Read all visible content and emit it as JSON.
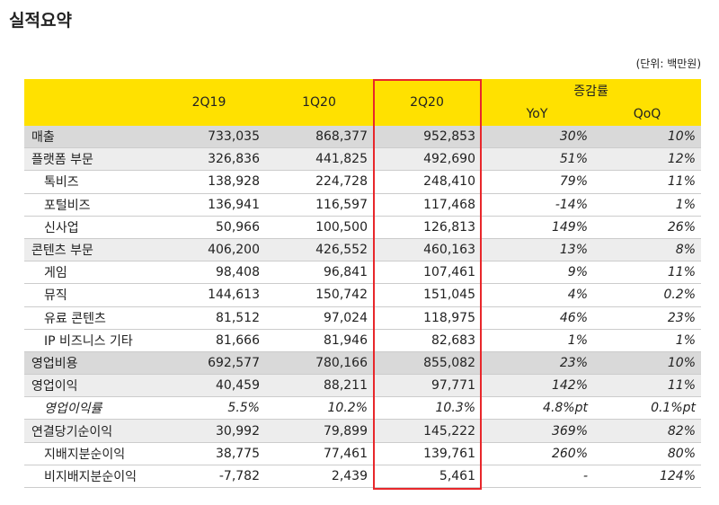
{
  "title": "실적요약",
  "unit": "(단위: 백만원)",
  "table": {
    "columns": [
      "2Q19",
      "1Q20",
      "2Q20"
    ],
    "change_group": "증감률",
    "change_columns": [
      "YoY",
      "QoQ"
    ],
    "rows": [
      [
        "매출",
        "733,035",
        "868,377",
        "952,853",
        "30%",
        "10%"
      ],
      [
        "플랫폼 부문",
        "326,836",
        "441,825",
        "492,690",
        "51%",
        "12%"
      ],
      [
        "톡비즈",
        "138,928",
        "224,728",
        "248,410",
        "79%",
        "11%"
      ],
      [
        "포털비즈",
        "136,941",
        "116,597",
        "117,468",
        "-14%",
        "1%"
      ],
      [
        "신사업",
        "50,966",
        "100,500",
        "126,813",
        "149%",
        "26%"
      ],
      [
        "콘텐츠 부문",
        "406,200",
        "426,552",
        "460,163",
        "13%",
        "8%"
      ],
      [
        "게임",
        "98,408",
        "96,841",
        "107,461",
        "9%",
        "11%"
      ],
      [
        "뮤직",
        "144,613",
        "150,742",
        "151,045",
        "4%",
        "0.2%"
      ],
      [
        "유료 콘텐츠",
        "81,512",
        "97,024",
        "118,975",
        "46%",
        "23%"
      ],
      [
        "IP 비즈니스 기타",
        "81,666",
        "81,946",
        "82,683",
        "1%",
        "1%"
      ],
      [
        "영업비용",
        "692,577",
        "780,166",
        "855,082",
        "23%",
        "10%"
      ],
      [
        "영업이익",
        "40,459",
        "88,211",
        "97,771",
        "142%",
        "11%"
      ],
      [
        "영업이익률",
        "5.5%",
        "10.2%",
        "10.3%",
        "4.8%pt",
        "0.1%pt"
      ],
      [
        "연결당기순이익",
        "30,992",
        "79,899",
        "145,222",
        "369%",
        "82%"
      ],
      [
        "지배지분순이익",
        "38,775",
        "77,461",
        "139,761",
        "260%",
        "80%"
      ],
      [
        "비지배지분순이익",
        "-7,782",
        "2,439",
        "5,461",
        "-",
        "124%"
      ]
    ]
  }
}
